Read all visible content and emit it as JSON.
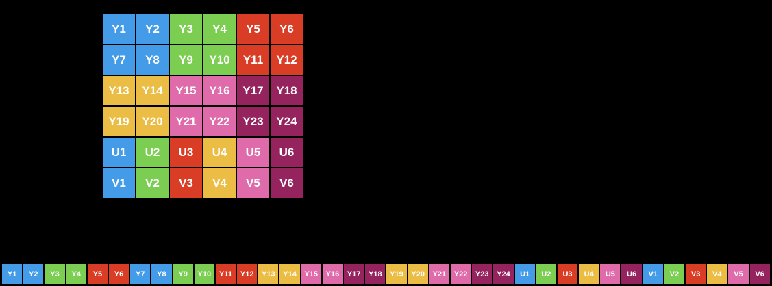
{
  "background": "#000000",
  "text_color": "#ffffff",
  "palette": {
    "blue": "#449BE8",
    "green": "#7CCE52",
    "red": "#D93D26",
    "yellow": "#ECBD45",
    "pink": "#DF6BAB",
    "magenta": "#95235E"
  },
  "grid": {
    "columns": 6,
    "rows": 6,
    "cells": [
      {
        "label": "Y1",
        "color": "blue"
      },
      {
        "label": "Y2",
        "color": "blue"
      },
      {
        "label": "Y3",
        "color": "green"
      },
      {
        "label": "Y4",
        "color": "green"
      },
      {
        "label": "Y5",
        "color": "red"
      },
      {
        "label": "Y6",
        "color": "red"
      },
      {
        "label": "Y7",
        "color": "blue"
      },
      {
        "label": "Y8",
        "color": "blue"
      },
      {
        "label": "Y9",
        "color": "green"
      },
      {
        "label": "Y10",
        "color": "green"
      },
      {
        "label": "Y11",
        "color": "red"
      },
      {
        "label": "Y12",
        "color": "red"
      },
      {
        "label": "Y13",
        "color": "yellow"
      },
      {
        "label": "Y14",
        "color": "yellow"
      },
      {
        "label": "Y15",
        "color": "pink"
      },
      {
        "label": "Y16",
        "color": "pink"
      },
      {
        "label": "Y17",
        "color": "magenta"
      },
      {
        "label": "Y18",
        "color": "magenta"
      },
      {
        "label": "Y19",
        "color": "yellow"
      },
      {
        "label": "Y20",
        "color": "yellow"
      },
      {
        "label": "Y21",
        "color": "pink"
      },
      {
        "label": "Y22",
        "color": "pink"
      },
      {
        "label": "Y23",
        "color": "magenta"
      },
      {
        "label": "Y24",
        "color": "magenta"
      },
      {
        "label": "U1",
        "color": "blue"
      },
      {
        "label": "U2",
        "color": "green"
      },
      {
        "label": "U3",
        "color": "red"
      },
      {
        "label": "U4",
        "color": "yellow"
      },
      {
        "label": "U5",
        "color": "pink"
      },
      {
        "label": "U6",
        "color": "magenta"
      },
      {
        "label": "V1",
        "color": "blue"
      },
      {
        "label": "V2",
        "color": "green"
      },
      {
        "label": "V3",
        "color": "red"
      },
      {
        "label": "V4",
        "color": "yellow"
      },
      {
        "label": "V5",
        "color": "pink"
      },
      {
        "label": "V6",
        "color": "magenta"
      }
    ]
  },
  "memory_strip": {
    "cells": [
      {
        "label": "Y1",
        "color": "blue"
      },
      {
        "label": "Y2",
        "color": "blue"
      },
      {
        "label": "Y3",
        "color": "green"
      },
      {
        "label": "Y4",
        "color": "green"
      },
      {
        "label": "Y5",
        "color": "red"
      },
      {
        "label": "Y6",
        "color": "red"
      },
      {
        "label": "Y7",
        "color": "blue"
      },
      {
        "label": "Y8",
        "color": "blue"
      },
      {
        "label": "Y9",
        "color": "green"
      },
      {
        "label": "Y10",
        "color": "green"
      },
      {
        "label": "Y11",
        "color": "red"
      },
      {
        "label": "Y12",
        "color": "red"
      },
      {
        "label": "Y13",
        "color": "yellow"
      },
      {
        "label": "Y14",
        "color": "yellow"
      },
      {
        "label": "Y15",
        "color": "pink"
      },
      {
        "label": "Y16",
        "color": "pink"
      },
      {
        "label": "Y17",
        "color": "magenta"
      },
      {
        "label": "Y18",
        "color": "magenta"
      },
      {
        "label": "Y19",
        "color": "yellow"
      },
      {
        "label": "Y20",
        "color": "yellow"
      },
      {
        "label": "Y21",
        "color": "pink"
      },
      {
        "label": "Y22",
        "color": "pink"
      },
      {
        "label": "Y23",
        "color": "magenta"
      },
      {
        "label": "Y24",
        "color": "magenta"
      },
      {
        "label": "U1",
        "color": "blue"
      },
      {
        "label": "U2",
        "color": "green"
      },
      {
        "label": "U3",
        "color": "red"
      },
      {
        "label": "U4",
        "color": "yellow"
      },
      {
        "label": "U5",
        "color": "pink"
      },
      {
        "label": "U6",
        "color": "magenta"
      },
      {
        "label": "V1",
        "color": "blue"
      },
      {
        "label": "V2",
        "color": "green"
      },
      {
        "label": "V3",
        "color": "red"
      },
      {
        "label": "V4",
        "color": "yellow"
      },
      {
        "label": "V5",
        "color": "pink"
      },
      {
        "label": "V6",
        "color": "magenta"
      }
    ]
  }
}
